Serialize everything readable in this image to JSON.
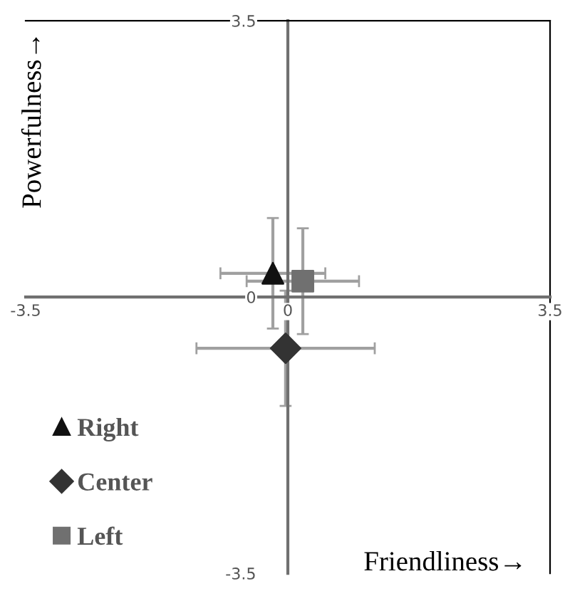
{
  "chart_data": {
    "type": "scatter",
    "xlabel": "Friendliness→",
    "ylabel": "Powerfulness→",
    "xlim": [
      -3.5,
      3.5
    ],
    "ylim": [
      -3.5,
      3.5
    ],
    "xticks": [
      -3.5,
      0,
      3.5
    ],
    "yticks": [
      -3.5,
      0,
      3.5
    ],
    "grid": false,
    "legend": "bottom left",
    "series": [
      {
        "name": "Right",
        "color": "#111111",
        "marker": "triangle",
        "x": [
          -0.2
        ],
        "values": [
          0.3
        ],
        "errors": [
          0.7
        ],
        "xerrors": [
          0.7
        ]
      },
      {
        "name": "Center",
        "color": "#333333",
        "marker": "diamond",
        "x": [
          -0.03
        ],
        "values": [
          -0.65
        ],
        "errors": [
          0.73
        ],
        "xerrors": [
          1.19
        ]
      },
      {
        "name": "Left",
        "color": "#707070",
        "marker": "square",
        "x": [
          0.2
        ],
        "values": [
          0.2
        ],
        "errors": [
          0.67
        ],
        "xerrors": [
          0.75
        ]
      }
    ]
  }
}
